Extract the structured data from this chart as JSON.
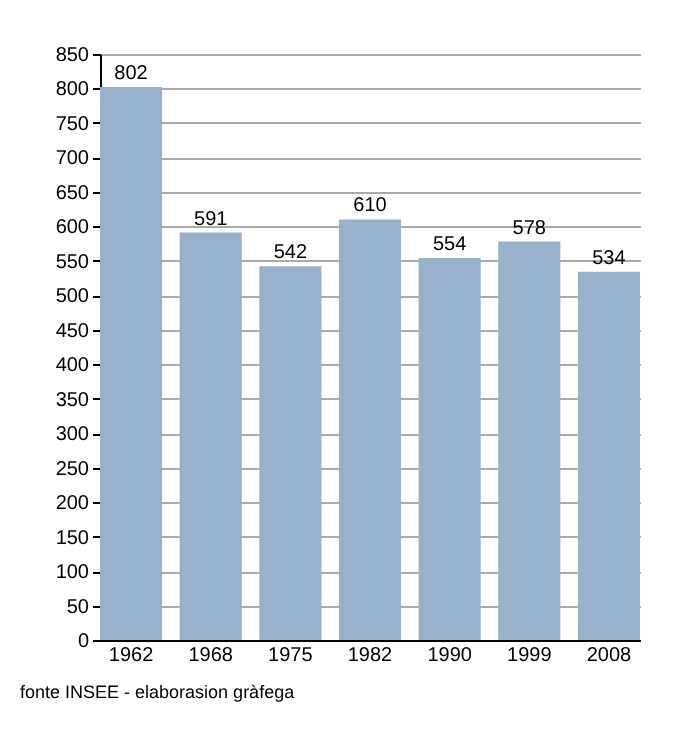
{
  "chart_data": {
    "type": "bar",
    "categories": [
      "1962",
      "1968",
      "1975",
      "1982",
      "1990",
      "1999",
      "2008"
    ],
    "values": [
      802,
      591,
      542,
      610,
      554,
      578,
      534
    ],
    "color": "#97b1cb",
    "ylim": [
      0,
      850
    ],
    "yticks": [
      0,
      50,
      100,
      150,
      200,
      250,
      300,
      350,
      400,
      450,
      500,
      550,
      600,
      650,
      700,
      750,
      800,
      850
    ],
    "grid": "y",
    "data_labels": true,
    "annotations": [
      "fonte INSEE - elaborasion gràfega"
    ]
  }
}
